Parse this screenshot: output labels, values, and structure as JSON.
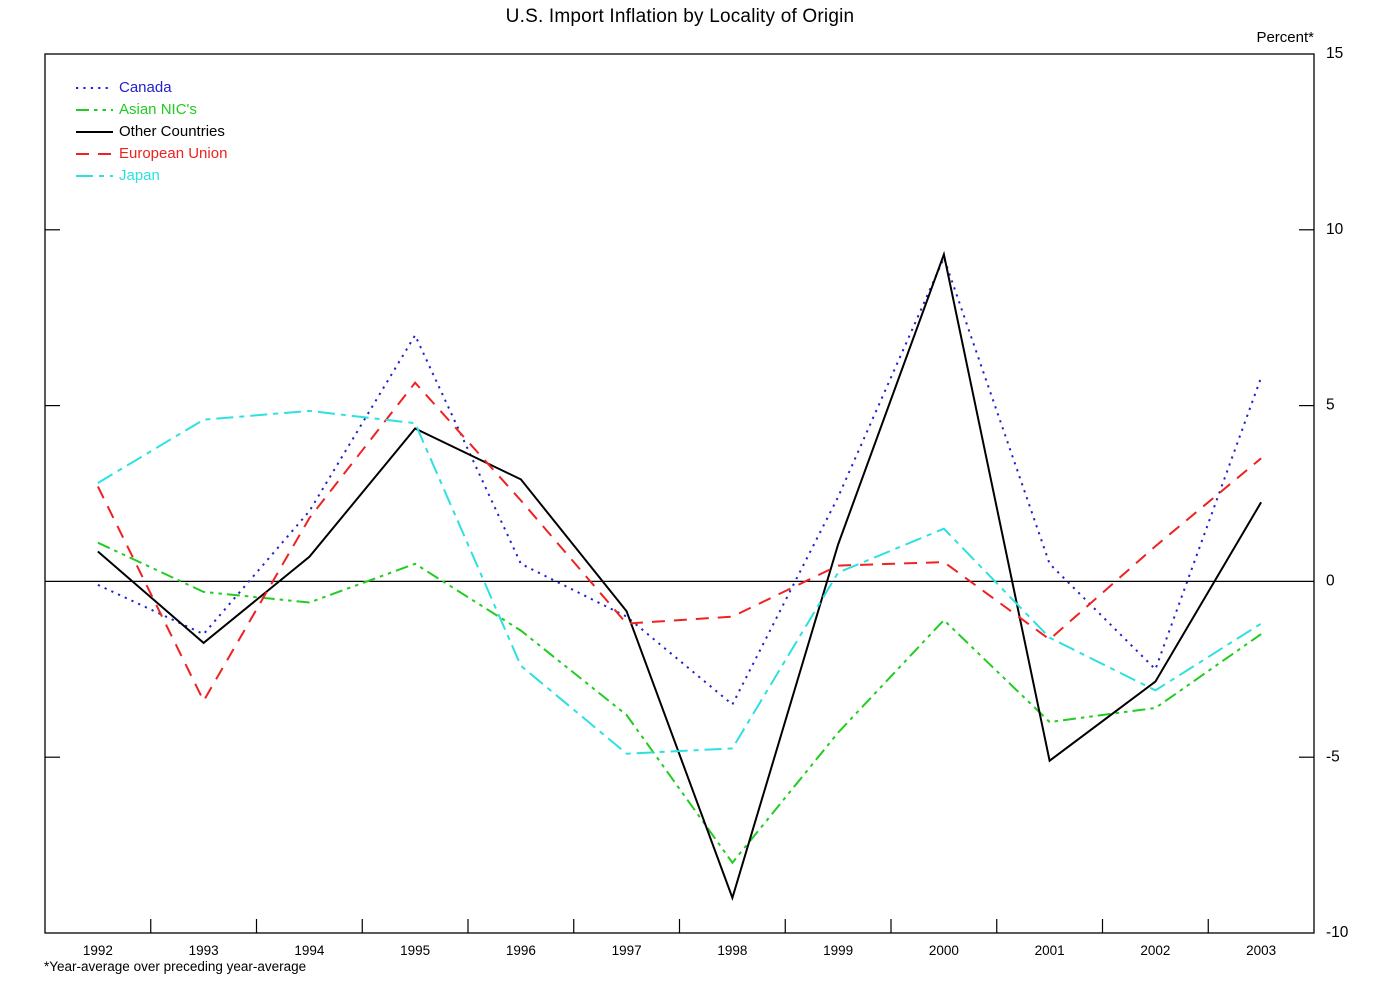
{
  "page": {
    "title": "U.S. Import Inflation by Locality of Origin",
    "y_axis_unit": "Percent*",
    "footnote": "*Year-average over preceding year-average"
  },
  "chart_data": {
    "type": "line",
    "title": "U.S. Import Inflation by Locality of Origin",
    "y_axis_label": "Percent*",
    "footnote": "*Year-average over preceding year-average",
    "x": [
      1992,
      1993,
      1994,
      1995,
      1996,
      1997,
      1998,
      1999,
      2000,
      2001,
      2002,
      2003
    ],
    "xlim": [
      1991.5,
      2003.5
    ],
    "ylim": [
      -10,
      15
    ],
    "y_ticks": [
      15,
      10,
      5,
      0,
      -5,
      -10
    ],
    "grid": "off",
    "zero_line": true,
    "legend_position": "top-left",
    "series": [
      {
        "name": "Canada",
        "color": "#2222cc",
        "dash": "dotted",
        "values": [
          -0.1,
          -1.5,
          2.0,
          7.0,
          0.5,
          -1.0,
          -3.5,
          2.4,
          9.2,
          0.5,
          -2.5,
          5.8
        ]
      },
      {
        "name": "Asian NIC's",
        "color": "#22cc22",
        "dash": "dash-dot-dot",
        "values": [
          1.1,
          -0.3,
          -0.6,
          0.5,
          -1.4,
          -3.8,
          -8.0,
          -4.3,
          -1.1,
          -4.0,
          -3.6,
          -1.5
        ]
      },
      {
        "name": "Other Countries",
        "color": "#000000",
        "dash": "solid",
        "values": [
          0.85,
          -1.75,
          0.7,
          4.35,
          2.9,
          -0.85,
          -9.0,
          1.05,
          9.3,
          -5.1,
          -2.85,
          2.25
        ]
      },
      {
        "name": "European Union",
        "color": "#ee2222",
        "dash": "dashed",
        "values": [
          2.7,
          -3.4,
          1.8,
          5.65,
          2.3,
          -1.2,
          -1.0,
          0.45,
          0.55,
          -1.65,
          1.0,
          3.5
        ]
      },
      {
        "name": "Japan",
        "color": "#2ee0e0",
        "dash": "dash-dot",
        "values": [
          2.8,
          4.6,
          4.85,
          4.5,
          -2.4,
          -4.9,
          -4.75,
          0.25,
          1.5,
          -1.6,
          -3.1,
          -1.2
        ]
      }
    ]
  }
}
